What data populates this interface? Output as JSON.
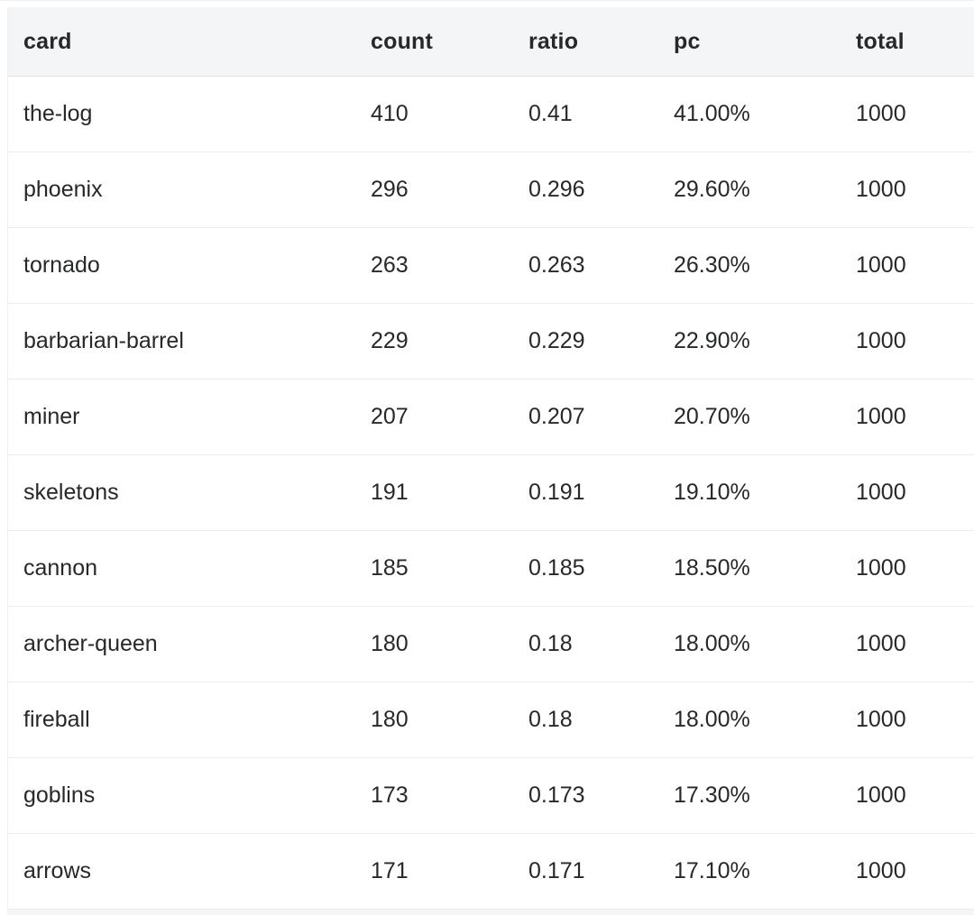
{
  "table": {
    "headers": [
      "card",
      "count",
      "ratio",
      "pc",
      "total"
    ],
    "rows": [
      [
        "the-log",
        "410",
        "0.41",
        "41.00%",
        "1000"
      ],
      [
        "phoenix",
        "296",
        "0.296",
        "29.60%",
        "1000"
      ],
      [
        "tornado",
        "263",
        "0.263",
        "26.30%",
        "1000"
      ],
      [
        "barbarian-barrel",
        "229",
        "0.229",
        "22.90%",
        "1000"
      ],
      [
        "miner",
        "207",
        "0.207",
        "20.70%",
        "1000"
      ],
      [
        "skeletons",
        "191",
        "0.191",
        "19.10%",
        "1000"
      ],
      [
        "cannon",
        "185",
        "0.185",
        "18.50%",
        "1000"
      ],
      [
        "archer-queen",
        "180",
        "0.18",
        "18.00%",
        "1000"
      ],
      [
        "fireball",
        "180",
        "0.18",
        "18.00%",
        "1000"
      ],
      [
        "goblins",
        "173",
        "0.173",
        "17.30%",
        "1000"
      ],
      [
        "arrows",
        "171",
        "0.171",
        "17.10%",
        "1000"
      ]
    ]
  },
  "colors": {
    "header_bg": "#f4f5f6",
    "header_sep": "#e0e2e4",
    "row_sep": "#ebedee",
    "text": "#26282a",
    "table_edge": "#eef0f1"
  }
}
